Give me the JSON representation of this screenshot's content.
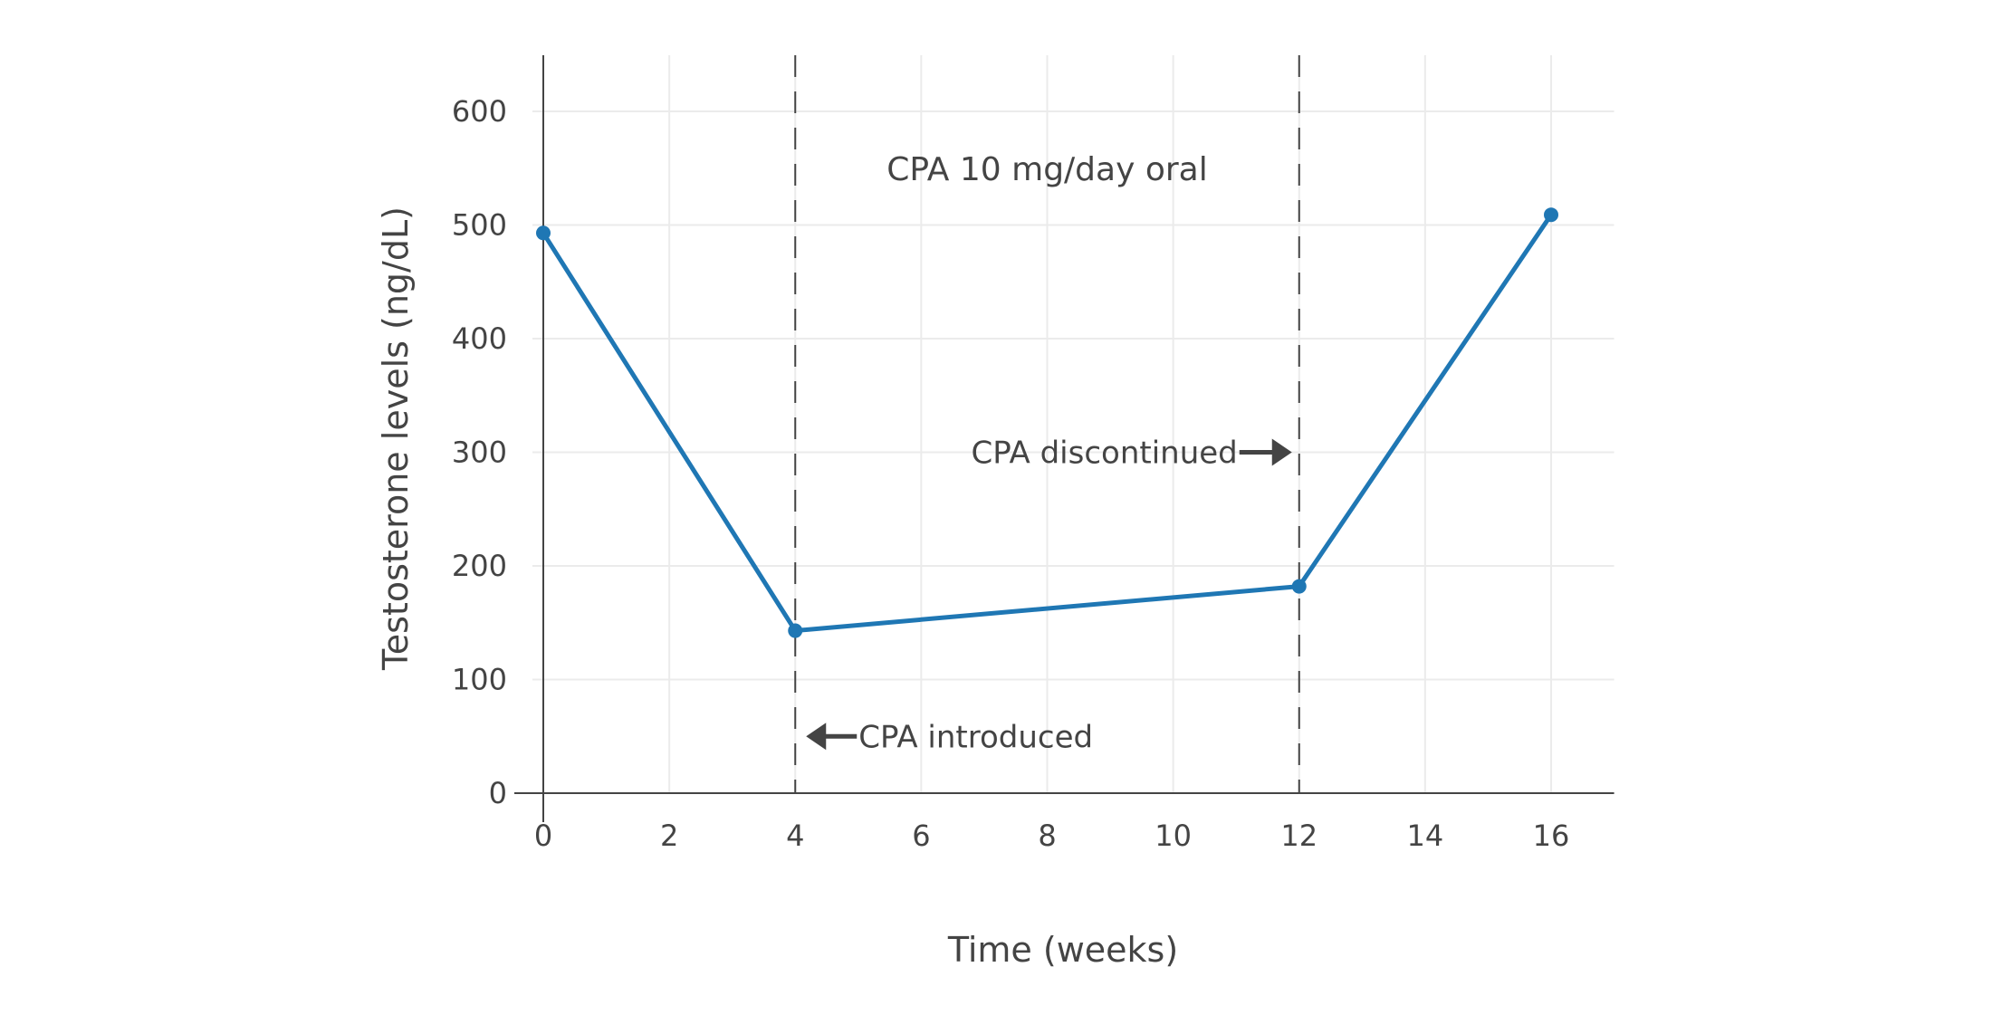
{
  "chart_data": {
    "type": "line",
    "title": "",
    "xlabel": "Time (weeks)",
    "ylabel": "Testosterone levels (ng/dL)",
    "xlim": [
      0,
      17
    ],
    "ylim": [
      0,
      650
    ],
    "xticks": [
      0,
      2,
      4,
      6,
      8,
      10,
      12,
      14,
      16
    ],
    "yticks": [
      0,
      100,
      200,
      300,
      400,
      500,
      600
    ],
    "grid": true,
    "series": [
      {
        "x": [
          0,
          4,
          12,
          16
        ],
        "y": [
          493,
          143,
          182,
          509
        ],
        "color": "#1f77b4"
      }
    ],
    "vertical_lines": [
      {
        "x": 4,
        "style": "dashed"
      },
      {
        "x": 12,
        "style": "dashed"
      }
    ],
    "annotations": [
      {
        "text": "CPA 10 mg/day oral",
        "x": 8,
        "y": 550
      },
      {
        "text": "CPA discontinued",
        "x": 12,
        "y": 300,
        "arrow": "right"
      },
      {
        "text": "CPA introduced",
        "x": 4,
        "y": 50,
        "arrow": "left"
      }
    ]
  }
}
